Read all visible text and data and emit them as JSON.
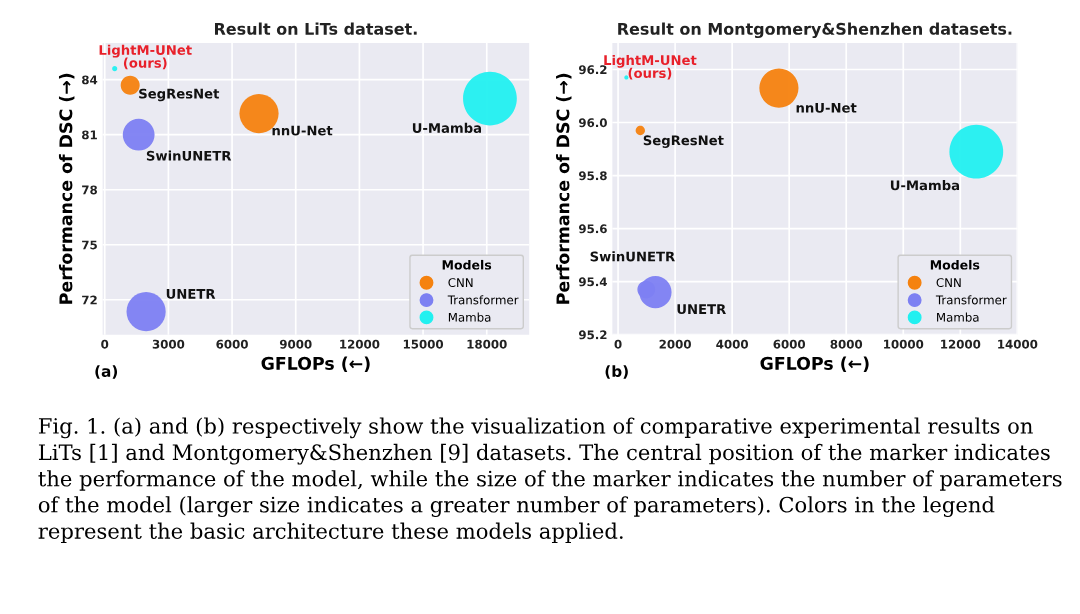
{
  "chart_data": [
    {
      "type": "bubble",
      "title": "Result on LiTs dataset.",
      "xlabel": "GFLOPs (←)",
      "ylabel": "Performance of DSC (→)",
      "legend_title": "Models",
      "legend": "bottom right",
      "grid": true,
      "xlim": [
        -100,
        20000
      ],
      "xticks": [
        0,
        3000,
        6000,
        9000,
        12000,
        15000,
        18000
      ],
      "ylim": [
        70.1,
        86
      ],
      "yticks": [
        72,
        75,
        78,
        81,
        84
      ],
      "series": [
        {
          "name": "CNN",
          "color": "#f5820f",
          "x": [
            1200,
            7270
          ],
          "values": [
            83.7,
            82.15
          ],
          "sizes": [
            0.125,
            0.53
          ]
        },
        {
          "name": "Transformer",
          "color": "#7d80f2",
          "x": [
            1600,
            1950
          ],
          "values": [
            81.0,
            71.35
          ],
          "sizes": [
            0.35,
            0.53
          ]
        },
        {
          "name": "Mamba",
          "color": "#22f0f0",
          "x": [
            470,
            18150
          ],
          "values": [
            84.6,
            82.97
          ],
          "sizes": [
            0.009,
            1
          ]
        }
      ],
      "annotations": [
        {
          "text": "LightM-UNet\n(ours)",
          "x": 470,
          "y": 84.6
        },
        {
          "text": "SegResNet",
          "x": 1200,
          "y": 83.7
        },
        {
          "text": "nnU-Net",
          "x": 7270,
          "y": 82.15
        },
        {
          "text": "SwinUNETR",
          "x": 1600,
          "y": 81.0
        },
        {
          "text": "U-Mamba",
          "x": 18150,
          "y": 82.97
        },
        {
          "text": "UNETR",
          "x": 1950,
          "y": 71.35
        },
        "(a)"
      ]
    },
    {
      "type": "bubble",
      "title": "Result on Montgomery&Shenzhen datasets.",
      "xlabel": "GFLOPs (←)",
      "ylabel": "Performance of DSC (→)",
      "legend_title": "Models",
      "legend": "bottom right",
      "grid": true,
      "xlim": [
        -200,
        14000
      ],
      "xticks": [
        0,
        2000,
        4000,
        6000,
        8000,
        10000,
        12000,
        14000
      ],
      "ylim": [
        95.2,
        96.3
      ],
      "yticks": [
        95.2,
        95.4,
        95.6,
        95.8,
        {
          "value": 96,
          "label": "96.0"
        },
        96.2
      ],
      "series": [
        {
          "name": "CNN",
          "color": "#f5820f",
          "x": [
            780,
            5640
          ],
          "values": [
            95.97,
            96.13
          ],
          "sizes": [
            0.03,
            0.53
          ]
        },
        {
          "name": "Transformer",
          "color": "#7d80f2",
          "x": [
            990,
            1310
          ],
          "values": [
            95.37,
            95.36
          ],
          "sizes": [
            0.11,
            0.36
          ]
        },
        {
          "name": "Mamba",
          "color": "#22f0f0",
          "x": [
            290,
            12560
          ],
          "values": [
            96.17,
            95.89
          ],
          "sizes": [
            0.006,
            1
          ]
        }
      ],
      "annotations": [
        {
          "text": "LightM-UNet\n(ours)",
          "x": 290,
          "y": 96.17
        },
        {
          "text": "nnU-Net",
          "x": 5640,
          "y": 96.13
        },
        {
          "text": "SegResNet",
          "x": 780,
          "y": 95.97
        },
        {
          "text": "U-Mamba",
          "x": 12560,
          "y": 95.89
        },
        {
          "text": "SwinUNETR",
          "x": 990,
          "y": 95.37
        },
        {
          "text": "UNETR",
          "x": 1310,
          "y": 95.36
        },
        "(b)"
      ]
    },
    {
      "type": "other",
      "annotations": [
        "Fig. 1. (a) and (b) respectively show the visualization of comparative experimental results on LiTs [1] and Montgomery&Shenzhen [9] datasets. The central position of the marker indicates the performance of the model, while the size of the marker indicates the number of parameters of the model (larger size indicates a greater number of parameters). Colors in the legend represent the basic architecture these models applied."
      ]
    }
  ]
}
